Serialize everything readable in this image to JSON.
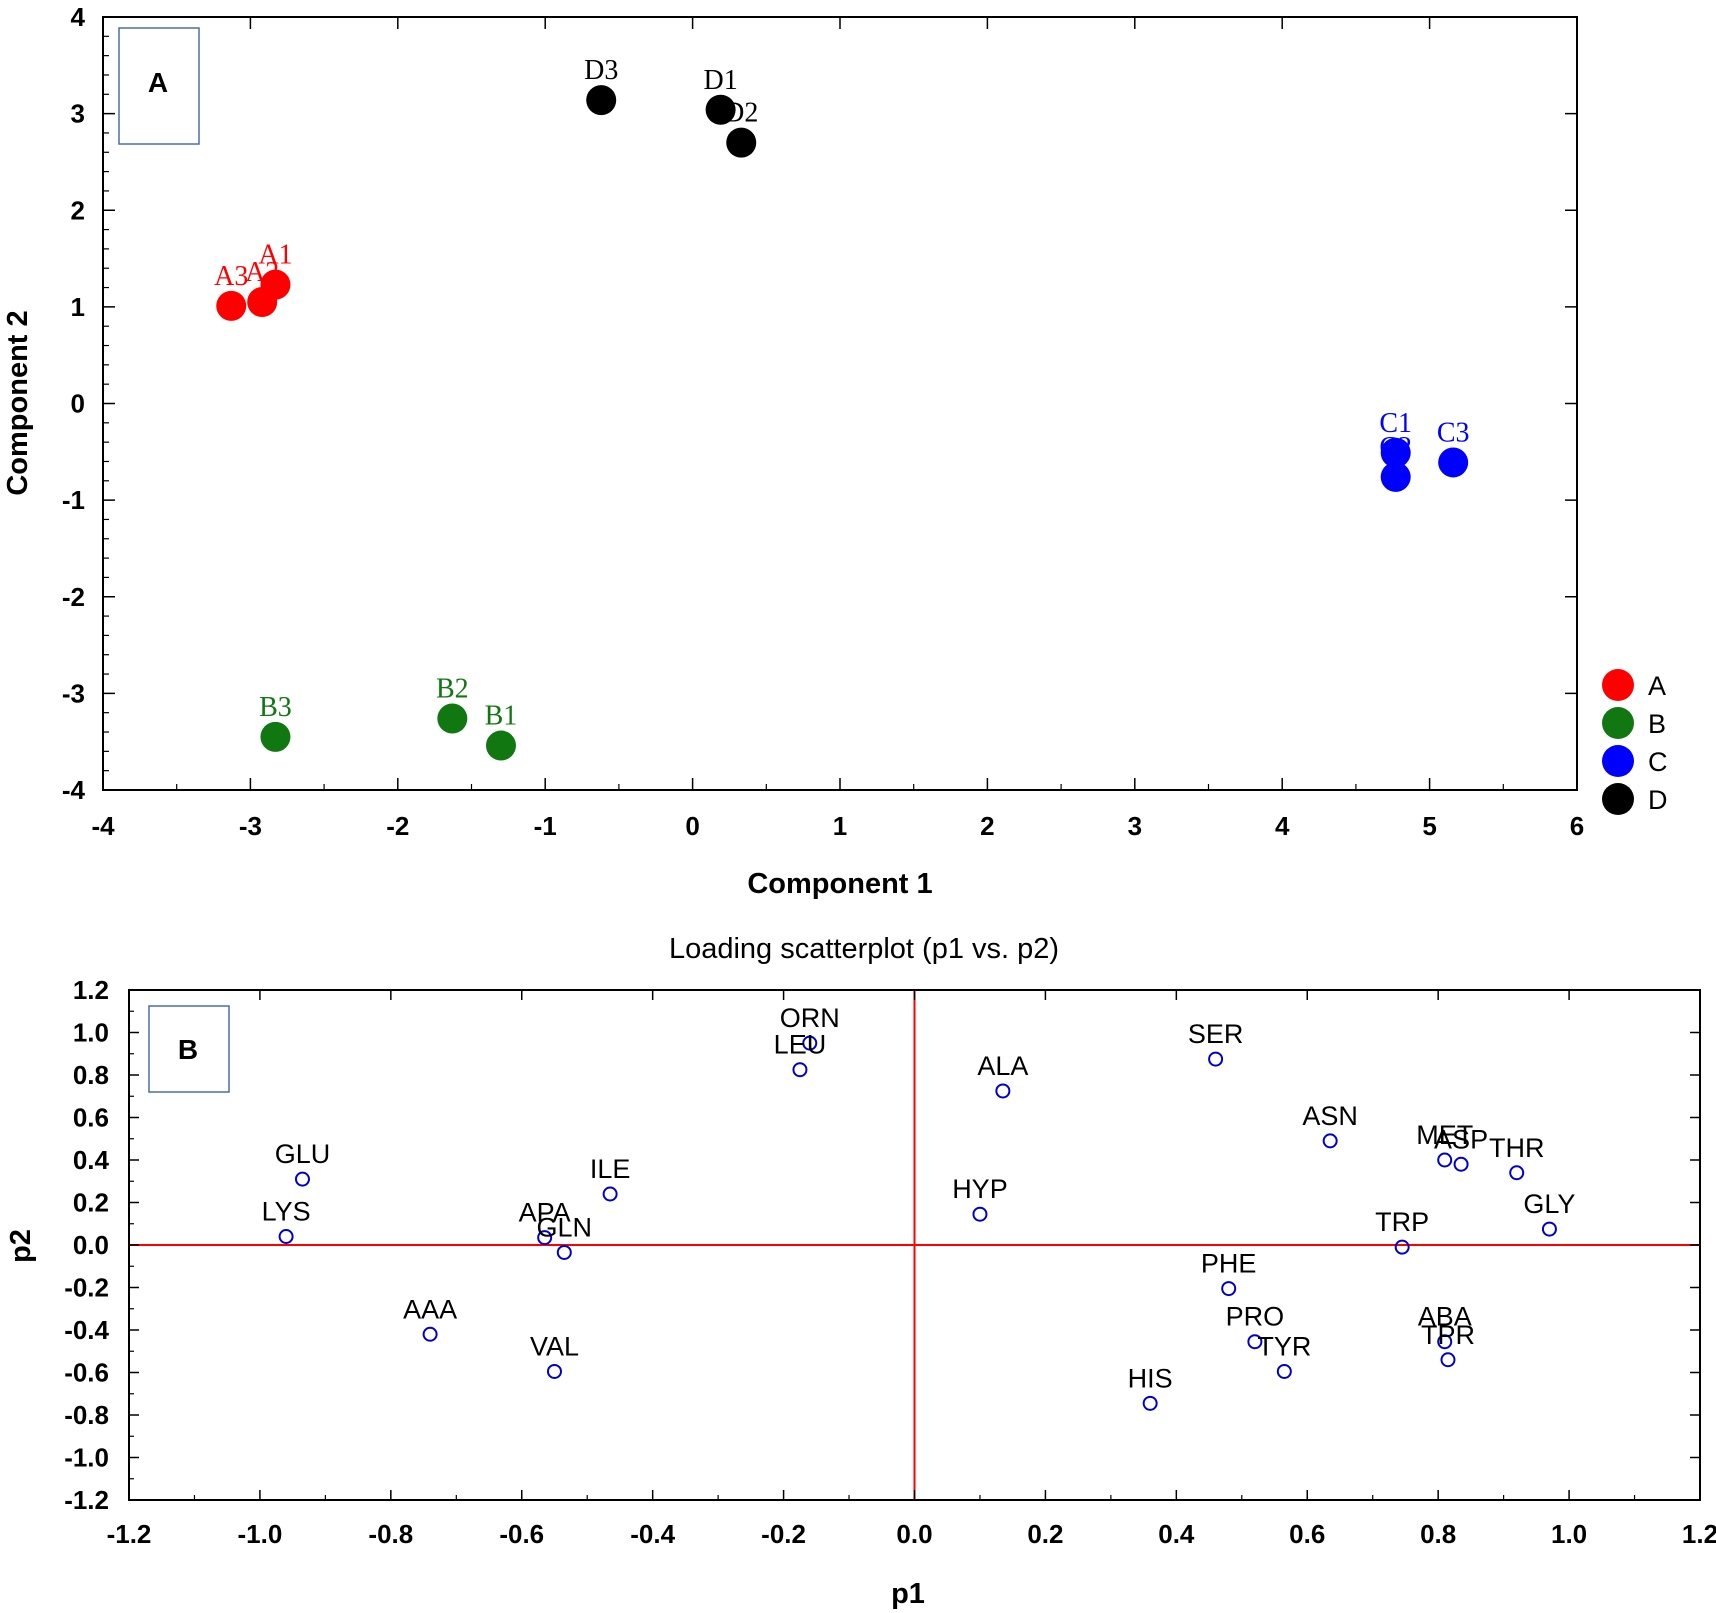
{
  "chart_data": [
    {
      "type": "scatter",
      "panel_label": "A",
      "title": "",
      "xlabel": "Component 1",
      "ylabel": "Component 2",
      "xlim": [
        -4,
        6
      ],
      "ylim": [
        -4,
        4
      ],
      "xticks": [
        -4,
        -3,
        -2,
        -1,
        0,
        1,
        2,
        3,
        4,
        5,
        6
      ],
      "yticks": [
        -4,
        -3,
        -2,
        -1,
        0,
        1,
        2,
        3,
        4
      ],
      "xtick_labels": [
        "-4",
        "-3",
        "-2",
        "-1",
        "0",
        "1",
        "2",
        "3",
        "4",
        "5",
        "6"
      ],
      "ytick_labels": [
        "-4",
        "-3",
        "-2",
        "-1",
        "0",
        "1",
        "2",
        "3",
        "4"
      ],
      "grid": false,
      "legend_position": "right",
      "series": [
        {
          "name": "A",
          "color": "#ff0000",
          "points": [
            {
              "label": "A1",
              "x": -2.83,
              "y": 1.23
            },
            {
              "label": "A2",
              "x": -2.92,
              "y": 1.05
            },
            {
              "label": "A3",
              "x": -3.13,
              "y": 1.01
            }
          ]
        },
        {
          "name": "B",
          "color": "#117711",
          "points": [
            {
              "label": "B1",
              "x": -1.3,
              "y": -3.54
            },
            {
              "label": "B2",
              "x": -1.63,
              "y": -3.26
            },
            {
              "label": "B3",
              "x": -2.83,
              "y": -3.45
            }
          ]
        },
        {
          "name": "C",
          "color": "#0000ff",
          "points": [
            {
              "label": "C1",
              "x": 4.77,
              "y": -0.51
            },
            {
              "label": "C2",
              "x": 4.77,
              "y": -0.76
            },
            {
              "label": "C3",
              "x": 5.16,
              "y": -0.61
            }
          ]
        },
        {
          "name": "D",
          "color": "#000000",
          "points": [
            {
              "label": "D1",
              "x": 0.19,
              "y": 3.04
            },
            {
              "label": "D2",
              "x": 0.33,
              "y": 2.7
            },
            {
              "label": "D3",
              "x": -0.62,
              "y": 3.14
            }
          ]
        }
      ]
    },
    {
      "type": "scatter",
      "panel_label": "B",
      "title": "Loading scatterplot (p1 vs. p2)",
      "xlabel": "p1",
      "ylabel": "p2",
      "xlim": [
        -1.2,
        1.2
      ],
      "ylim": [
        -1.2,
        1.2
      ],
      "xticks": [
        -1.2,
        -1.0,
        -0.8,
        -0.6,
        -0.4,
        -0.2,
        0.0,
        0.2,
        0.4,
        0.6,
        0.8,
        1.0,
        1.2
      ],
      "yticks": [
        -1.2,
        -1.0,
        -0.8,
        -0.6,
        -0.4,
        -0.2,
        0.0,
        0.2,
        0.4,
        0.6,
        0.8,
        1.0,
        1.2
      ],
      "xtick_labels": [
        "-1.2",
        "-1.0",
        "-0.8",
        "-0.6",
        "-0.4",
        "-0.2",
        "0.0",
        "0.2",
        "0.4",
        "0.6",
        "0.8",
        "1.0",
        "1.2"
      ],
      "ytick_labels": [
        "-1.2",
        "-1.0",
        "-0.8",
        "-0.6",
        "-0.4",
        "-0.2",
        "0.0",
        "0.2",
        "0.4",
        "0.6",
        "0.8",
        "1.0",
        "1.2"
      ],
      "grid": false,
      "reference_lines_color": "#ff0000",
      "marker_color": "#0000cc",
      "points": [
        {
          "label": "ORN",
          "x": -0.16,
          "y": 0.95
        },
        {
          "label": "LEU",
          "x": -0.175,
          "y": 0.825
        },
        {
          "label": "ALA",
          "x": 0.135,
          "y": 0.725
        },
        {
          "label": "SER",
          "x": 0.46,
          "y": 0.875
        },
        {
          "label": "ASN",
          "x": 0.635,
          "y": 0.49
        },
        {
          "label": "MET",
          "x": 0.81,
          "y": 0.4
        },
        {
          "label": "ASP",
          "x": 0.835,
          "y": 0.38
        },
        {
          "label": "THR",
          "x": 0.92,
          "y": 0.34
        },
        {
          "label": "GLU",
          "x": -0.935,
          "y": 0.31
        },
        {
          "label": "ILE",
          "x": -0.465,
          "y": 0.24
        },
        {
          "label": "HYP",
          "x": 0.1,
          "y": 0.145
        },
        {
          "label": "GLY",
          "x": 0.97,
          "y": 0.075
        },
        {
          "label": "LYS",
          "x": -0.96,
          "y": 0.04
        },
        {
          "label": "APA",
          "x": -0.565,
          "y": 0.035
        },
        {
          "label": "GLN",
          "x": -0.535,
          "y": -0.035
        },
        {
          "label": "TRP",
          "x": 0.745,
          "y": -0.01
        },
        {
          "label": "PHE",
          "x": 0.48,
          "y": -0.205
        },
        {
          "label": "AAA",
          "x": -0.74,
          "y": -0.42
        },
        {
          "label": "PRO",
          "x": 0.52,
          "y": -0.455
        },
        {
          "label": "ABA",
          "x": 0.81,
          "y": -0.455
        },
        {
          "label": "TYR",
          "x": 0.565,
          "y": -0.595
        },
        {
          "label": "TPR",
          "x": 0.815,
          "y": -0.54
        },
        {
          "label": "VAL",
          "x": -0.55,
          "y": -0.595
        },
        {
          "label": "HIS",
          "x": 0.36,
          "y": -0.745
        }
      ]
    }
  ]
}
